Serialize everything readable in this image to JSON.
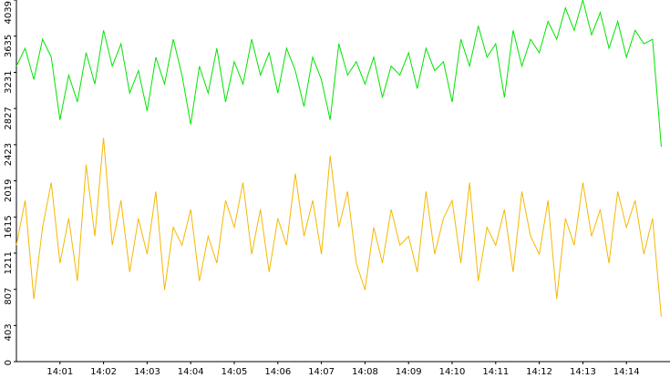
{
  "chart_data": {
    "type": "line",
    "x": [
      0,
      0.2,
      0.4,
      0.6,
      0.8,
      1,
      1.2,
      1.4,
      1.6,
      1.8,
      2,
      2.2,
      2.4,
      2.6,
      2.8,
      3,
      3.2,
      3.4,
      3.6,
      3.8,
      4,
      4.2,
      4.4,
      4.6,
      4.8,
      5,
      5.2,
      5.4,
      5.6,
      5.8,
      6,
      6.2,
      6.4,
      6.6,
      6.8,
      7,
      7.2,
      7.4,
      7.6,
      7.8,
      8,
      8.2,
      8.4,
      8.6,
      8.8,
      9,
      9.2,
      9.4,
      9.6,
      9.8,
      10,
      10.2,
      10.4,
      10.6,
      10.8,
      11,
      11.2,
      11.4,
      11.6,
      11.8,
      12,
      12.2,
      12.4,
      12.6,
      12.8,
      13,
      13.2,
      13.4,
      13.6,
      13.8,
      14,
      14.2,
      14.4,
      14.6,
      14.8
    ],
    "series": [
      {
        "color": "#00e400",
        "values": [
          3300,
          3500,
          3150,
          3600,
          3400,
          2700,
          3200,
          2900,
          3450,
          3100,
          3700,
          3300,
          3550,
          3000,
          3250,
          2800,
          3400,
          3100,
          3600,
          3200,
          2650,
          3300,
          3000,
          3500,
          2900,
          3350,
          3100,
          3600,
          3200,
          3450,
          3000,
          3500,
          3250,
          2850,
          3400,
          3150,
          2700,
          3550,
          3200,
          3350,
          3100,
          3400,
          2950,
          3300,
          3200,
          3450,
          3050,
          3500,
          3250,
          3350,
          2900,
          3600,
          3300,
          3750,
          3400,
          3550,
          2950,
          3700,
          3300,
          3600,
          3450,
          3800,
          3600,
          3950,
          3700,
          4039,
          3650,
          3900,
          3500,
          3800,
          3400,
          3700,
          3550,
          3600,
          2400
        ]
      },
      {
        "color": "#f5b800",
        "values": [
          1300,
          1800,
          700,
          1500,
          2000,
          1100,
          1600,
          900,
          2200,
          1400,
          2500,
          1300,
          1800,
          1000,
          1600,
          1200,
          1900,
          800,
          1500,
          1300,
          1700,
          900,
          1400,
          1100,
          1800,
          1500,
          2000,
          1200,
          1700,
          1000,
          1600,
          1300,
          2100,
          1400,
          1800,
          1200,
          2300,
          1500,
          1900,
          1100,
          800,
          1500,
          1100,
          1700,
          1300,
          1400,
          1000,
          1900,
          1200,
          1600,
          1800,
          1100,
          2000,
          900,
          1500,
          1300,
          1700,
          1000,
          1900,
          1400,
          1200,
          1800,
          700,
          1600,
          1300,
          2000,
          1400,
          1700,
          1100,
          1900,
          1500,
          1800,
          1200,
          1600,
          500
        ]
      }
    ],
    "xlim": [
      0,
      15
    ],
    "xticks": [
      {
        "value": 1,
        "label": "14:01"
      },
      {
        "value": 2,
        "label": "14:02"
      },
      {
        "value": 3,
        "label": "14:03"
      },
      {
        "value": 4,
        "label": "14:04"
      },
      {
        "value": 5,
        "label": "14:05"
      },
      {
        "value": 6,
        "label": "14:06"
      },
      {
        "value": 7,
        "label": "14:07"
      },
      {
        "value": 8,
        "label": "14:08"
      },
      {
        "value": 9,
        "label": "14:09"
      },
      {
        "value": 10,
        "label": "14:10"
      },
      {
        "value": 11,
        "label": "14:11"
      },
      {
        "value": 12,
        "label": "14:12"
      },
      {
        "value": 13,
        "label": "14:13"
      },
      {
        "value": 14,
        "label": "14:14"
      }
    ],
    "ylim": [
      0,
      4039
    ],
    "yticks": [
      0,
      403,
      807,
      1211,
      1615,
      2019,
      2423,
      2827,
      3231,
      3635,
      4039
    ]
  }
}
